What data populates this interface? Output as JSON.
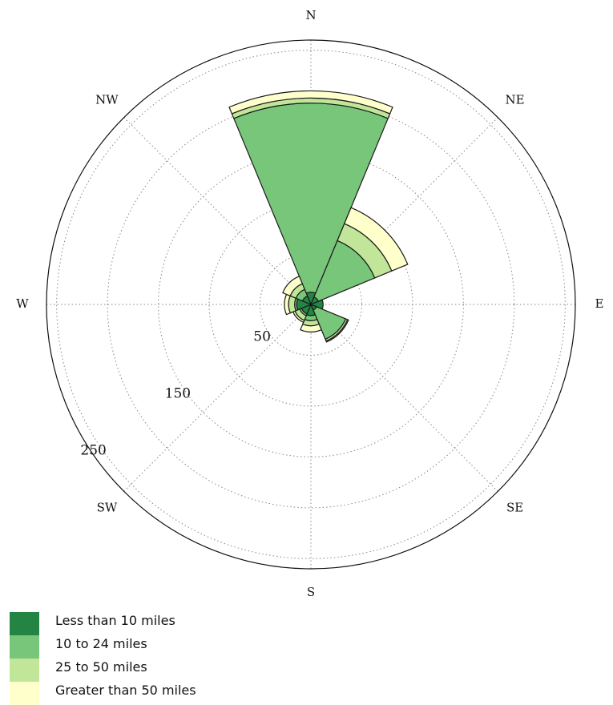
{
  "chart_data": {
    "type": "wind-rose",
    "directions": [
      "N",
      "NE",
      "E",
      "SE",
      "S",
      "SW",
      "W",
      "NW"
    ],
    "ring_values": [
      50,
      100,
      150,
      200,
      250
    ],
    "ring_labels": [
      "50",
      "150",
      "250"
    ],
    "rmax": 260,
    "grid": true,
    "legend_position": "bottom-left",
    "series": [
      {
        "name": "Less than 10 miles",
        "color": "#238443"
      },
      {
        "name": "10 to 24 miles",
        "color": "#78c679"
      },
      {
        "name": "25 to 50 miles",
        "color": "#c2e699"
      },
      {
        "name": "Greater than 50 miles",
        "color": "#ffffcc"
      }
    ],
    "sectors": [
      {
        "direction": "N",
        "start_deg": -22.5,
        "end_deg": 22.5,
        "cumulative": [
          12,
          198,
          203,
          210
        ]
      },
      {
        "direction": "NE",
        "start_deg": 22.5,
        "end_deg": 67.5,
        "cumulative": [
          8,
          68,
          86,
          103
        ]
      },
      {
        "direction": "E",
        "start_deg": 67.5,
        "end_deg": 112.5,
        "cumulative": [
          12,
          12,
          12,
          12
        ]
      },
      {
        "direction": "SE",
        "start_deg": 112.5,
        "end_deg": 157.5,
        "cumulative": [
          6,
          37,
          39,
          40
        ]
      },
      {
        "direction": "S",
        "start_deg": 157.5,
        "end_deg": 202.5,
        "cumulative": [
          11,
          16,
          21,
          27
        ]
      },
      {
        "direction": "SW",
        "start_deg": 202.5,
        "end_deg": 247.5,
        "cumulative": [
          10,
          12,
          17,
          19
        ]
      },
      {
        "direction": "W",
        "start_deg": 247.5,
        "end_deg": 292.5,
        "cumulative": [
          14,
          16,
          22,
          26
        ]
      },
      {
        "direction": "NW",
        "start_deg": 292.5,
        "end_deg": 337.5,
        "cumulative": [
          9,
          16,
          22,
          30
        ]
      }
    ]
  }
}
